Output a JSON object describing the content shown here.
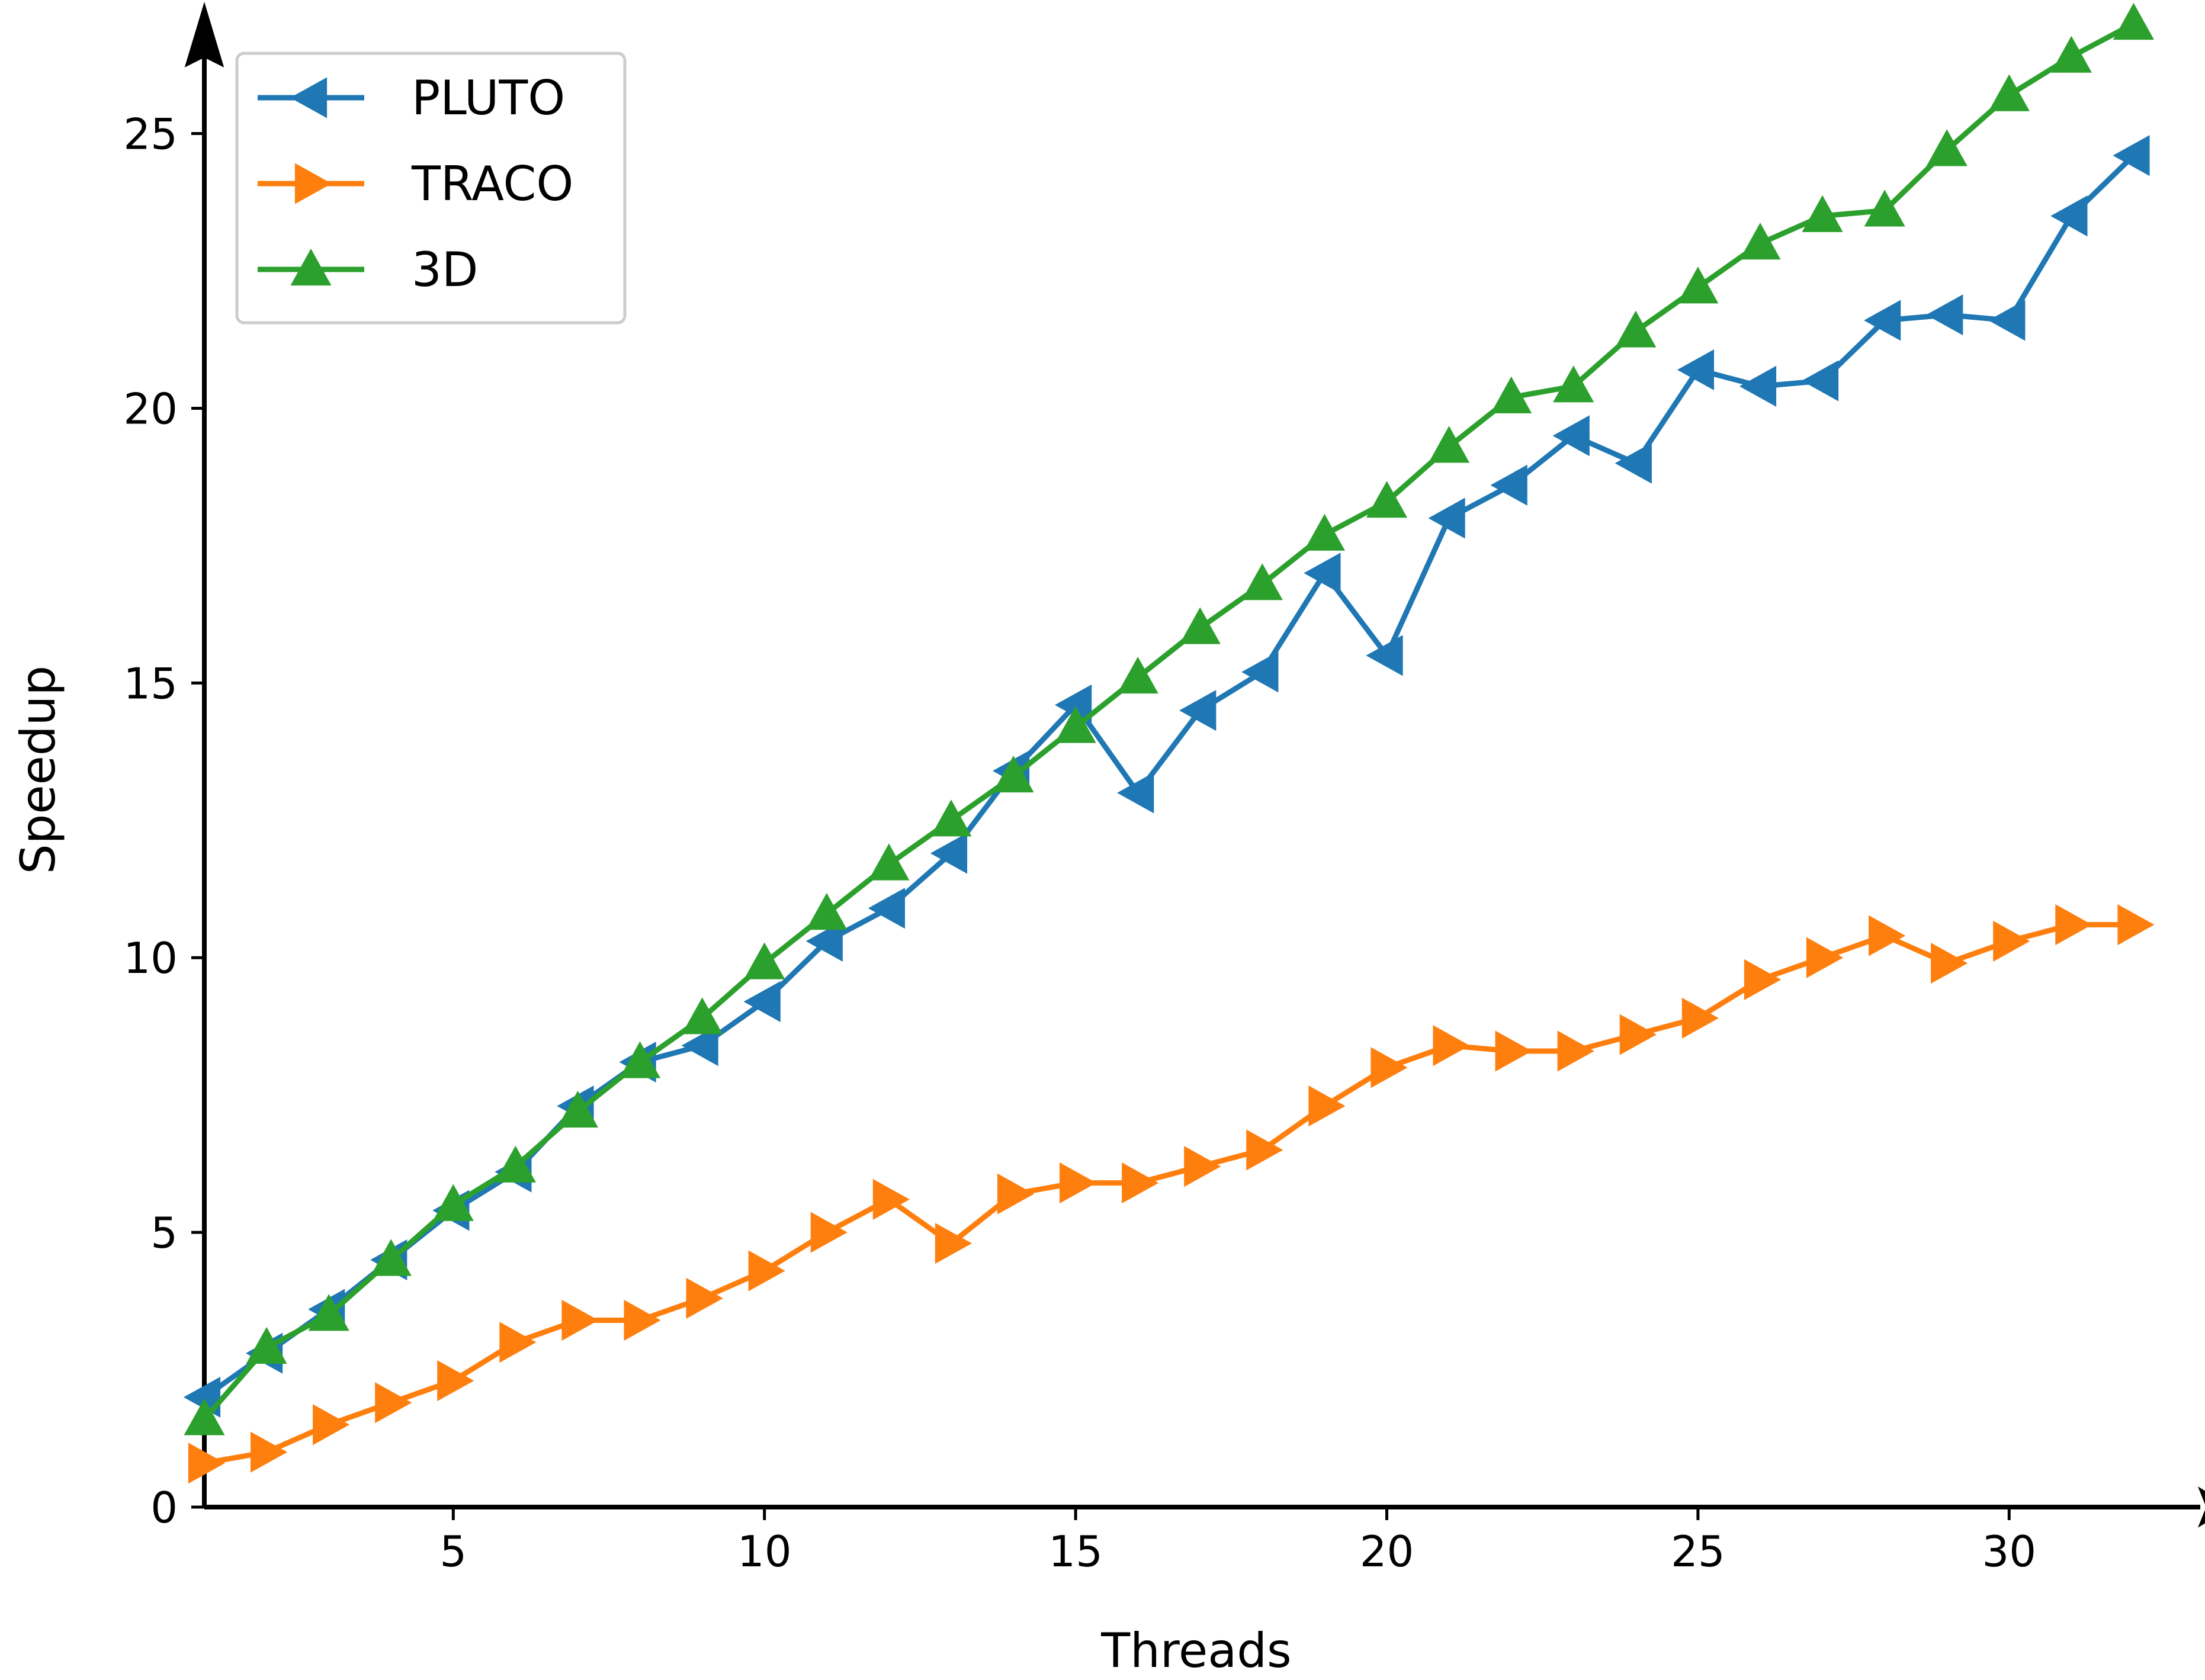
{
  "chart_data": {
    "type": "line",
    "title": "",
    "xlabel": "Threads",
    "ylabel": "Speedup",
    "xlim": [
      1,
      32.5
    ],
    "ylim": [
      0,
      27
    ],
    "xticks": [
      5,
      10,
      15,
      20,
      25,
      30
    ],
    "yticks": [
      0,
      5,
      10,
      15,
      20,
      25
    ],
    "grid": false,
    "legend_position": "top-left",
    "x": [
      1,
      2,
      3,
      4,
      5,
      6,
      7,
      8,
      9,
      10,
      11,
      12,
      13,
      14,
      15,
      16,
      17,
      18,
      19,
      20,
      21,
      22,
      23,
      24,
      25,
      26,
      27,
      28,
      29,
      30,
      31,
      32
    ],
    "series": [
      {
        "name": "PLUTO",
        "color": "#1f77b4",
        "marker": "triangle-left",
        "values": [
          2.0,
          2.8,
          3.6,
          4.5,
          5.4,
          6.1,
          7.3,
          8.1,
          8.4,
          9.2,
          10.3,
          10.9,
          11.9,
          13.4,
          14.6,
          13.0,
          14.5,
          15.2,
          17.0,
          15.5,
          18.0,
          18.6,
          19.5,
          19.0,
          20.7,
          20.4,
          20.5,
          21.6,
          21.7,
          21.6,
          23.5,
          24.6
        ]
      },
      {
        "name": "TRACO",
        "color": "#ff7f0e",
        "marker": "triangle-right",
        "values": [
          0.8,
          1.0,
          1.5,
          1.9,
          2.3,
          3.0,
          3.4,
          3.4,
          3.8,
          4.3,
          5.0,
          5.6,
          4.8,
          5.7,
          5.9,
          5.9,
          6.2,
          6.5,
          7.3,
          8.0,
          8.4,
          8.3,
          8.3,
          8.6,
          8.9,
          9.6,
          10.0,
          10.4,
          9.9,
          10.3,
          10.6,
          10.6
        ]
      },
      {
        "name": "3D",
        "color": "#2ca02c",
        "marker": "triangle-up",
        "values": [
          1.6,
          2.9,
          3.5,
          4.5,
          5.5,
          6.2,
          7.2,
          8.1,
          8.9,
          9.9,
          10.8,
          11.7,
          12.5,
          13.3,
          14.2,
          15.1,
          16.0,
          16.8,
          17.7,
          18.3,
          19.3,
          20.2,
          20.4,
          21.4,
          22.2,
          23.0,
          23.5,
          23.6,
          24.7,
          25.7,
          26.4,
          27.0
        ]
      }
    ]
  }
}
